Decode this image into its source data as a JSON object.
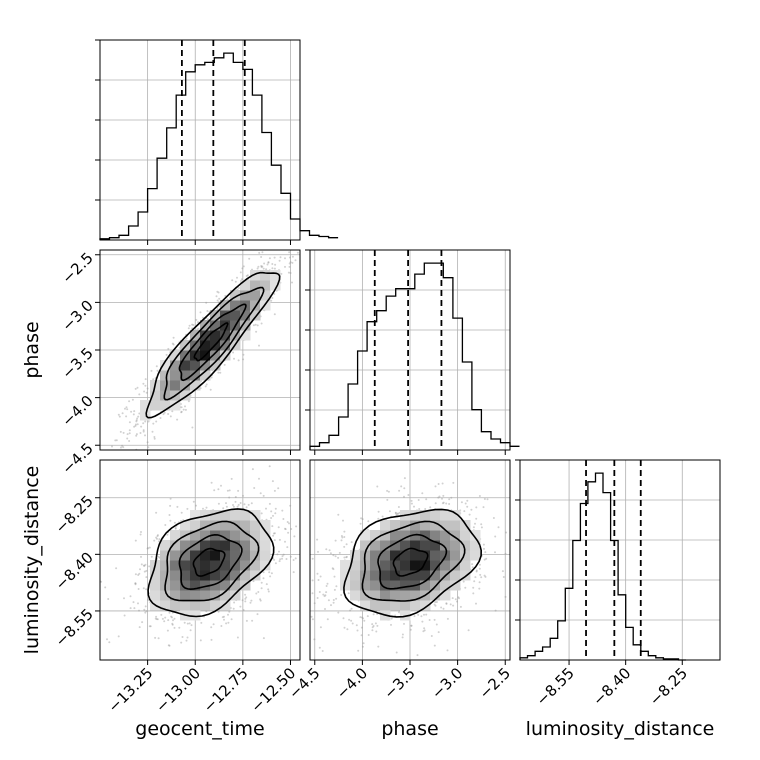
{
  "chart_data": {
    "type": "corner",
    "parameters": [
      "geocent_time",
      "phase",
      "luminosity_distance"
    ],
    "axis_labels": {
      "geocent_time": "geocent_time",
      "phase": "phase",
      "luminosity_distance": "luminosity_distance"
    },
    "ranges": {
      "geocent_time": [
        -13.5,
        -12.45
      ],
      "phase": [
        -4.55,
        -2.45
      ],
      "luminosity_distance": [
        -8.68,
        -8.15
      ]
    },
    "ticks": {
      "geocent_time": [
        {
          "v": -13.25,
          "label": "−13.25"
        },
        {
          "v": -13.0,
          "label": "−13.00"
        },
        {
          "v": -12.75,
          "label": "−12.75"
        },
        {
          "v": -12.5,
          "label": "−12.50"
        }
      ],
      "phase": [
        {
          "v": -4.5,
          "label": "−4.5"
        },
        {
          "v": -4.0,
          "label": "−4.0"
        },
        {
          "v": -3.5,
          "label": "−3.5"
        },
        {
          "v": -3.0,
          "label": "−3.0"
        },
        {
          "v": -2.5,
          "label": "−2.5"
        }
      ],
      "luminosity_distance": [
        {
          "v": -8.55,
          "label": "−8.55"
        },
        {
          "v": -8.4,
          "label": "−8.40"
        },
        {
          "v": -8.25,
          "label": "−8.25"
        }
      ]
    },
    "marginals": {
      "geocent_time": {
        "bin_start": -13.5,
        "bin_width": 0.05,
        "counts": [
          0.5,
          1,
          2,
          6,
          12,
          22,
          35,
          48,
          62,
          72,
          75,
          76,
          78,
          80,
          76,
          73,
          62,
          46,
          32,
          20,
          9,
          4,
          2,
          1.5,
          1
        ],
        "quantiles": [
          -13.07,
          -12.905,
          -12.74
        ]
      },
      "phase": {
        "bin_start": -4.55,
        "bin_width": 0.1,
        "counts": [
          1,
          2,
          4,
          9,
          18,
          27,
          35,
          38,
          42,
          44,
          44,
          48,
          51,
          51,
          47,
          36,
          24,
          11,
          5,
          3,
          2,
          1
        ],
        "quantiles": [
          -3.87,
          -3.52,
          -3.17
        ]
      },
      "luminosity_distance": {
        "bin_start": -8.68,
        "bin_width": 0.02,
        "counts": [
          1,
          2,
          4,
          6,
          10,
          18,
          33,
          55,
          72,
          82,
          86,
          77,
          55,
          30,
          15,
          7,
          4,
          2,
          1,
          0.5,
          0.5,
          0
        ],
        "quantiles": [
          -8.505,
          -8.43,
          -8.36
        ]
      }
    },
    "joint": {
      "phase_vs_geocent_time": {
        "mean": [
          -12.92,
          -3.42
        ],
        "sd": [
          0.17,
          0.38
        ],
        "corr": 0.9
      },
      "luminosity_distance_vs_geocent_time": {
        "mean": [
          -12.93,
          -8.42
        ],
        "sd": [
          0.16,
          0.07
        ],
        "corr": 0.35
      },
      "luminosity_distance_vs_phase": {
        "mean": [
          -3.5,
          -8.42
        ],
        "sd": [
          0.35,
          0.07
        ],
        "corr": 0.3
      }
    },
    "grid": true
  }
}
